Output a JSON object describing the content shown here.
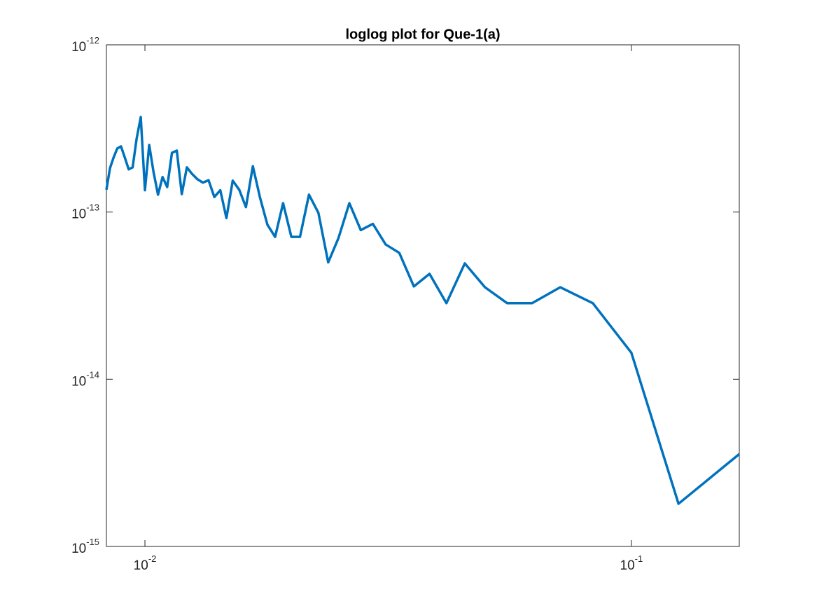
{
  "chart_data": {
    "type": "line",
    "title": "loglog plot for Que-1(a)",
    "x": [
      0.008333,
      0.008475,
      0.008621,
      0.008772,
      0.008929,
      0.009091,
      0.009259,
      0.009434,
      0.009615,
      0.009804,
      0.01,
      0.010204,
      0.010417,
      0.010638,
      0.01087,
      0.011111,
      0.011364,
      0.011628,
      0.011905,
      0.012195,
      0.0125,
      0.012821,
      0.013158,
      0.013514,
      0.013889,
      0.014286,
      0.014706,
      0.015152,
      0.015625,
      0.016129,
      0.016667,
      0.017241,
      0.017857,
      0.018519,
      0.019231,
      0.02,
      0.020833,
      0.021739,
      0.022727,
      0.02381,
      0.025,
      0.026316,
      0.027778,
      0.029412,
      0.03125,
      0.033333,
      0.035714,
      0.038462,
      0.041667,
      0.045455,
      0.05,
      0.055556,
      0.0625,
      0.071429,
      0.083333,
      0.1,
      0.125,
      0.166667
    ],
    "series": [
      {
        "color": "#0072bd",
        "values": [
          1.36e-13,
          1.83e-13,
          2.12e-13,
          2.4e-13,
          2.47e-13,
          2.12e-13,
          1.8e-13,
          1.85e-13,
          2.75e-13,
          3.7e-13,
          1.35e-13,
          2.52e-13,
          1.73e-13,
          1.27e-13,
          1.62e-13,
          1.41e-13,
          2.26e-13,
          2.33e-13,
          1.28e-13,
          1.85e-13,
          1.69e-13,
          1.57e-13,
          1.5e-13,
          1.55e-13,
          1.23e-13,
          1.35e-13,
          9.2e-14,
          1.54e-13,
          1.36e-13,
          1.07e-13,
          1.88e-13,
          1.22e-13,
          8.4e-14,
          7.1e-14,
          1.13e-13,
          7.1e-14,
          7.1e-14,
          1.27e-13,
          9.9e-14,
          5e-14,
          7e-14,
          1.13e-13,
          7.8e-14,
          8.5e-14,
          6.4e-14,
          5.7e-14,
          3.59e-14,
          4.27e-14,
          2.85e-14,
          4.93e-14,
          3.55e-14,
          2.85e-14,
          2.85e-14,
          3.55e-14,
          2.85e-14,
          1.44e-14,
          1.8e-15,
          3.57e-15
        ]
      }
    ],
    "xlim": [
      0.008333,
      0.166667
    ],
    "ylim": [
      1e-15,
      1e-12
    ],
    "xticks": [
      {
        "value": 0.01,
        "label": "10^-2"
      },
      {
        "value": 0.1,
        "label": "10^-1"
      }
    ],
    "yticks": [
      {
        "value": 1e-15,
        "label": "10^-15"
      },
      {
        "value": 1e-14,
        "label": "10^-14"
      },
      {
        "value": 1e-13,
        "label": "10^-13"
      },
      {
        "value": 1e-12,
        "label": "10^-12"
      }
    ],
    "xscale": "log",
    "yscale": "log",
    "grid": false
  }
}
